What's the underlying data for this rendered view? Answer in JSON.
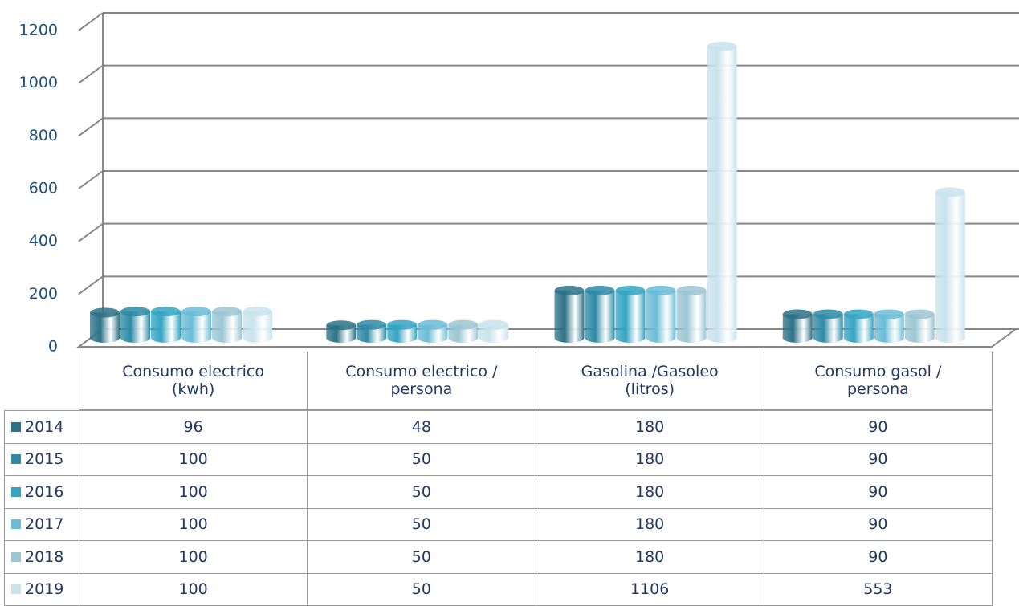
{
  "chart_data": {
    "type": "bar3d",
    "categories": [
      "Consumo electrico (kwh)",
      "Consumo electrico / persona",
      "Gasolina /Gasoleo (litros)",
      "Consumo gasol / persona"
    ],
    "series": [
      {
        "name": "2014",
        "color": "#2d7187",
        "values": [
          96,
          48,
          180,
          90
        ]
      },
      {
        "name": "2015",
        "color": "#2e8aa6",
        "values": [
          100,
          50,
          180,
          90
        ]
      },
      {
        "name": "2016",
        "color": "#35a4c2",
        "values": [
          100,
          50,
          180,
          90
        ]
      },
      {
        "name": "2017",
        "color": "#6bbcd6",
        "values": [
          100,
          50,
          180,
          90
        ]
      },
      {
        "name": "2018",
        "color": "#9cc6d4",
        "values": [
          100,
          50,
          180,
          90
        ]
      },
      {
        "name": "2019",
        "color": "#c8e3ec",
        "values": [
          100,
          50,
          1106,
          553
        ]
      }
    ],
    "ylim": [
      0,
      1200
    ],
    "yticks": [
      0,
      200,
      400,
      600,
      800,
      1000,
      1200
    ],
    "grid": true,
    "data_table": true
  }
}
